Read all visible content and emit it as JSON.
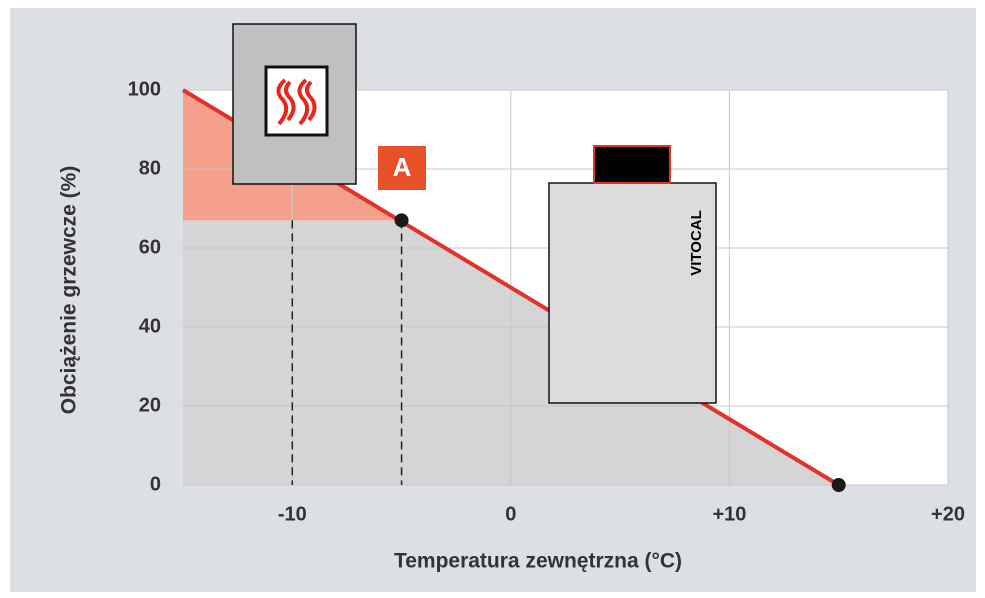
{
  "chart_data": {
    "type": "line",
    "x_label": "Temperatura zewnętrzna (°C)",
    "y_label": "Obciążenie grzewcze (%)",
    "xlim": [
      -15,
      20
    ],
    "ylim": [
      0,
      100
    ],
    "xticks": [
      -10,
      0,
      {
        "value": 10,
        "label": "+10"
      },
      {
        "value": 20,
        "label": "+20"
      }
    ],
    "yticks": [
      0,
      20,
      40,
      60,
      80,
      100
    ],
    "grid": true,
    "series": [
      {
        "color": "#e2332b",
        "x": [
          -15,
          15
        ],
        "values": [
          100,
          0
        ]
      }
    ],
    "markers": {
      "color": "#1a1a1a",
      "x": [
        -5,
        15
      ],
      "values": [
        67,
        0
      ]
    },
    "reference_lines_x": [
      -10,
      -5
    ],
    "shade_level": 67,
    "shade_colors": {
      "above": "#f5a08c",
      "below": "#d5d5d5"
    },
    "annotations": [
      "A",
      "VITOCAL"
    ]
  }
}
